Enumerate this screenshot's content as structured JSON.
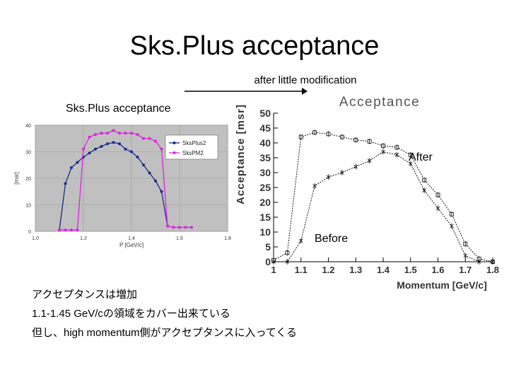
{
  "slide": {
    "title": "Sks.Plus acceptance",
    "subtitle": "after little modification",
    "left_label": "Sks.Plus acceptance",
    "after_label": "After",
    "before_label": "Before",
    "notes": [
      "アクセプタンスは増加",
      "1.1-1.45 GeV/cの領域をカバー出来ている",
      "但し、high momentum側がアクセプタンスに入ってくる"
    ]
  },
  "chart_data": [
    {
      "type": "line",
      "title": "",
      "xlabel": "P [GeV/c]",
      "ylabel": "[msr]",
      "xlim": [
        1.0,
        1.8
      ],
      "ylim": [
        0,
        40
      ],
      "x_ticks": [
        "1.0",
        "1.2",
        "1.4",
        "1.6",
        "1.8"
      ],
      "y_ticks": [
        "0",
        "10",
        "20",
        "30",
        "40"
      ],
      "grid": true,
      "legend_position": "top-right",
      "background": "#c0c0c0",
      "series": [
        {
          "name": "SksPlus2",
          "color": "#1a2a8c",
          "x": [
            1.1,
            1.125,
            1.15,
            1.175,
            1.2,
            1.225,
            1.25,
            1.275,
            1.3,
            1.325,
            1.35,
            1.375,
            1.4,
            1.425,
            1.45,
            1.475,
            1.5,
            1.525,
            1.55
          ],
          "y": [
            0.5,
            18,
            24,
            26,
            28,
            29.5,
            31,
            32,
            33,
            33.5,
            33,
            31,
            30,
            28,
            25,
            22,
            19,
            15,
            2
          ]
        },
        {
          "name": "SksPM2",
          "color": "#e020e0",
          "x": [
            1.1,
            1.125,
            1.15,
            1.175,
            1.2,
            1.225,
            1.25,
            1.275,
            1.3,
            1.325,
            1.35,
            1.375,
            1.4,
            1.425,
            1.45,
            1.475,
            1.5,
            1.525,
            1.55,
            1.575,
            1.6,
            1.625,
            1.65
          ],
          "y": [
            0.5,
            0.5,
            0.5,
            0.5,
            31,
            35.5,
            36.5,
            37,
            37,
            38,
            37,
            37,
            37,
            36.5,
            35,
            35,
            34,
            31,
            2,
            1.5,
            1.5,
            1.5,
            1.5
          ]
        }
      ]
    },
    {
      "type": "line",
      "title": "Acceptance",
      "xlabel": "Momentum [GeV/c]",
      "ylabel": "Acceptance [msr]",
      "xlim": [
        1.0,
        1.8
      ],
      "ylim": [
        0,
        50
      ],
      "x_ticks": [
        "1",
        "1.1",
        "1.2",
        "1.3",
        "1.4",
        "1.5",
        "1.6",
        "1.7",
        "1.8"
      ],
      "y_ticks": [
        "0",
        "5",
        "10",
        "15",
        "20",
        "25",
        "30",
        "35",
        "40",
        "45",
        "50"
      ],
      "grid": false,
      "series": [
        {
          "color": "#000000",
          "x": [
            1.0,
            1.05,
            1.1,
            1.15,
            1.2,
            1.25,
            1.3,
            1.35,
            1.4,
            1.45,
            1.5,
            1.55,
            1.6,
            1.65,
            1.7,
            1.75,
            1.8
          ],
          "y": [
            0.5,
            3,
            42,
            43.5,
            43,
            42,
            41,
            40.5,
            39,
            38.5,
            36,
            27.5,
            22.5,
            16,
            6,
            1,
            0
          ]
        },
        {
          "color": "#000000",
          "x": [
            1.0,
            1.05,
            1.1,
            1.15,
            1.2,
            1.25,
            1.3,
            1.35,
            1.4,
            1.45,
            1.5,
            1.55,
            1.6,
            1.65,
            1.7,
            1.75,
            1.8
          ],
          "y": [
            0,
            0,
            7,
            25.5,
            28.5,
            30,
            32,
            34,
            37,
            36,
            33,
            24,
            18,
            12,
            2,
            0,
            0
          ]
        }
      ]
    }
  ]
}
